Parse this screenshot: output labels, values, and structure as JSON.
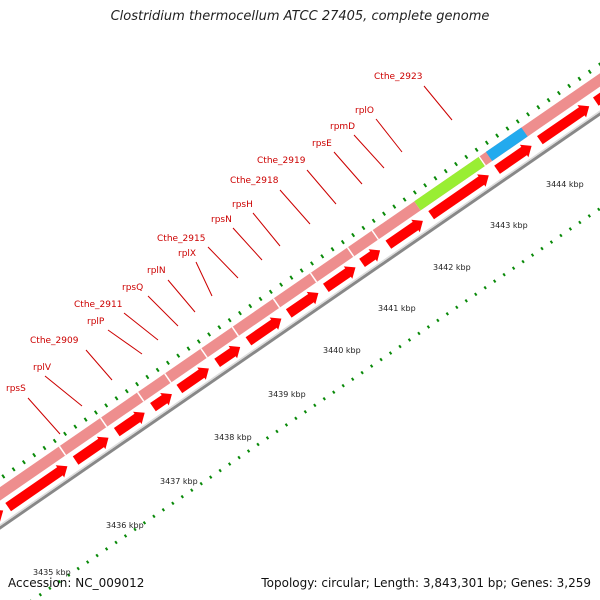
{
  "title": "Clostridium thermocellum ATCC 27405, complete genome",
  "footer": {
    "accession": "Accession: NC_009012",
    "stats": "Topology: circular; Length: 3,843,301 bp; Genes: 3,259"
  },
  "colors": {
    "gene_red": "#ff0000",
    "track_pink": "#ee8e8e",
    "highlight_green": "#99ee33",
    "highlight_blue": "#22aaee",
    "backbone_gray": "#888888",
    "tick_green": "#0a8a0a",
    "label_red": "#cc0000"
  },
  "gene_labels": [
    "rpsS",
    "rplV",
    "Cthe_2909",
    "rplP",
    "Cthe_2911",
    "rpsQ",
    "rplN",
    "rplX",
    "Cthe_2915",
    "rpsN",
    "rpsH",
    "Cthe_2918",
    "Cthe_2919",
    "rpsE",
    "rpmD",
    "rplO",
    "Cthe_2923"
  ],
  "kbp_labels": [
    "3435 kbp",
    "3436 kbp",
    "3437 kbp",
    "3438 kbp",
    "3439 kbp",
    "3440 kbp",
    "3441 kbp",
    "3442 kbp",
    "3443 kbp",
    "3444 kbp"
  ]
}
